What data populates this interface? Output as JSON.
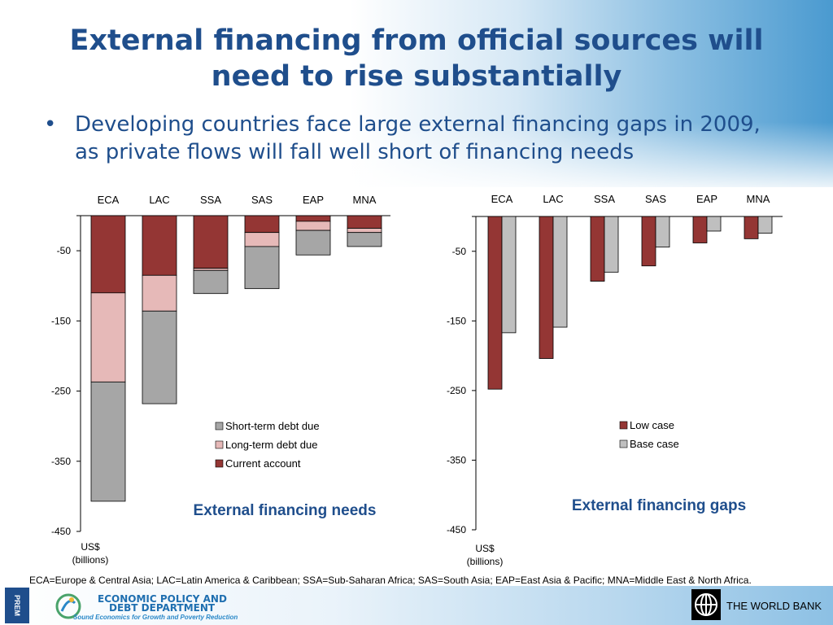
{
  "title": "External financing from official sources will need to rise substantially",
  "bullet": "Developing countries face large external financing gaps in 2009, as private flows will fall well short of financing needs",
  "footnote": "ECA=Europe & Central Asia; LAC=Latin America & Caribbean; SSA=Sub-Saharan Africa; SAS=South Asia; EAP=East Asia & Pacific; MNA=Middle East & North Africa.",
  "footer": {
    "epd_line1": "ECONOMIC POLICY AND",
    "epd_line2": "DEBT DEPARTMENT",
    "epd_tagline": "Sound Economics for Growth and Poverty Reduction",
    "prem_text": "PREM",
    "worldbank": "THE WORLD BANK"
  },
  "colors": {
    "current_account": "#943634",
    "long_term_debt": "#e6b9b8",
    "short_term_debt": "#a6a6a6",
    "low_case": "#943634",
    "base_case": "#bfbfbf",
    "heading": "#1f4e8c"
  },
  "chart_data": [
    {
      "type": "bar",
      "stacked": true,
      "title": "External financing needs",
      "categories": [
        "ECA",
        "LAC",
        "SSA",
        "SAS",
        "EAP",
        "MNA"
      ],
      "ylabel": "US$ (billions)",
      "ylim": [
        -450,
        0
      ],
      "yticks": [
        -50,
        -150,
        -250,
        -350,
        -450
      ],
      "legend_position": "bottom-right",
      "series": [
        {
          "name": "Current account",
          "values": [
            -110,
            -85,
            -75,
            -24,
            -8,
            -18
          ]
        },
        {
          "name": "Long-term debt due",
          "values": [
            -127,
            -51,
            -3,
            -20,
            -13,
            -6
          ]
        },
        {
          "name": "Short-term debt due",
          "values": [
            -170,
            -132,
            -33,
            -60,
            -35,
            -20
          ]
        }
      ],
      "legend_order": [
        "Short-term debt due",
        "Long-term debt due",
        "Current account"
      ]
    },
    {
      "type": "bar",
      "stacked": false,
      "title": "External financing gaps",
      "categories": [
        "ECA",
        "LAC",
        "SSA",
        "SAS",
        "EAP",
        "MNA"
      ],
      "ylabel": "US$ (billions)",
      "ylim": [
        -450,
        0
      ],
      "yticks": [
        -50,
        -150,
        -250,
        -350,
        -450
      ],
      "legend_position": "bottom-right",
      "series": [
        {
          "name": "Low case",
          "values": [
            -248,
            -204,
            -93,
            -71,
            -38,
            -32
          ]
        },
        {
          "name": "Base case",
          "values": [
            -167,
            -159,
            -80,
            -44,
            -21,
            -24
          ]
        }
      ]
    }
  ]
}
